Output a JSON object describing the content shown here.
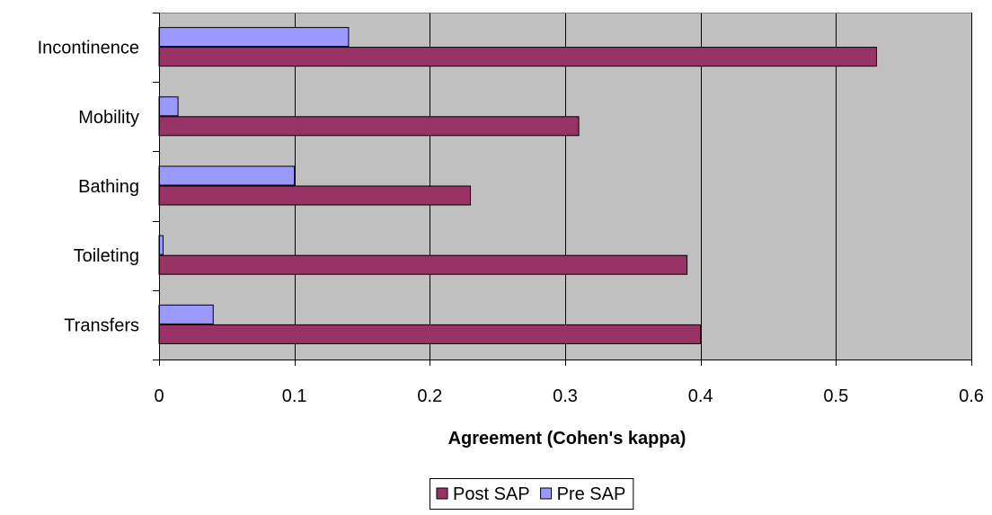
{
  "chart_data": {
    "type": "bar",
    "orientation": "horizontal",
    "title": "",
    "xlabel": "Agreement (Cohen's kappa)",
    "ylabel": "",
    "categories": [
      "Incontinence",
      "Mobility",
      "Bathing",
      "Toileting",
      "Transfers"
    ],
    "series": [
      {
        "name": "Pre SAP",
        "color": "#9999ff",
        "values": [
          0.14,
          0.014,
          0.1,
          0.003,
          0.04
        ]
      },
      {
        "name": "Post SAP",
        "color": "#993366",
        "values": [
          0.53,
          0.31,
          0.23,
          0.39,
          0.4
        ]
      }
    ],
    "xlim": [
      0,
      0.6
    ],
    "xticks": [
      "0",
      "0.1",
      "0.2",
      "0.3",
      "0.4",
      "0.5",
      "0.6"
    ],
    "xtick_values": [
      0,
      0.1,
      0.2,
      0.3,
      0.4,
      0.5,
      0.6
    ],
    "grid": "vertical",
    "plot_background": "#c0c0c0",
    "legend": {
      "position": "bottom",
      "entries": [
        "Post SAP",
        "Pre SAP"
      ]
    }
  }
}
